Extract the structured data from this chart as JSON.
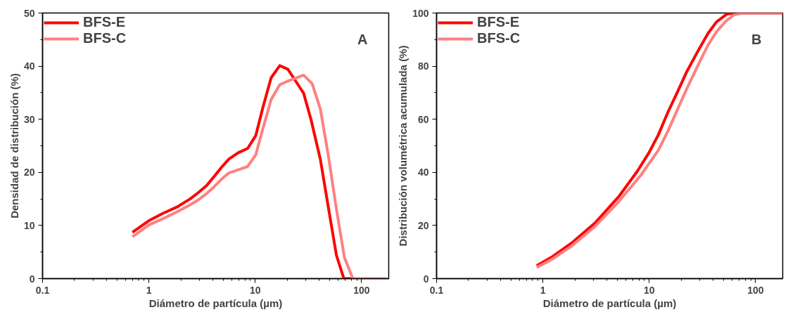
{
  "chart_data": [
    {
      "type": "line",
      "xlabel": "Diámetro de partícula (µm)",
      "ylabel": "Densidad de distribución (%)",
      "annotations": [
        "A"
      ],
      "log": "x",
      "xlim": [
        0.1,
        180
      ],
      "xticks": [
        0.1,
        1,
        10,
        100
      ],
      "ylim": [
        0,
        50
      ],
      "yticks": [
        0,
        10,
        20,
        30,
        40,
        50
      ],
      "grid": false,
      "legend": "top left",
      "marker": "none",
      "line_style": "solid",
      "series": [
        {
          "name": "BFS-E",
          "color": "#ff0000",
          "x": [
            0.7,
            1.0,
            1.36,
            1.85,
            2.44,
            2.88,
            3.48,
            4.06,
            4.84,
            5.65,
            6.92,
            8.48,
            10.1,
            11.8,
            14.1,
            17.0,
            20.3,
            23.8,
            28.5,
            33.5,
            41.0,
            49.0,
            58.0,
            68.2,
            79.5
          ],
          "values": [
            8.7,
            10.9,
            12.3,
            13.5,
            15.0,
            16.1,
            17.5,
            19.1,
            21.0,
            22.5,
            23.7,
            24.5,
            26.9,
            32.2,
            37.8,
            40.1,
            39.4,
            37.3,
            34.9,
            29.9,
            22.4,
            13.1,
            4.4,
            0,
            0
          ]
        },
        {
          "name": "BFS-C",
          "color": "#ff8080",
          "x": [
            0.7,
            1.0,
            1.36,
            1.85,
            2.44,
            2.9,
            3.48,
            4.06,
            4.75,
            5.65,
            6.92,
            8.48,
            10.1,
            11.8,
            14.1,
            17.0,
            20.3,
            23.8,
            28.5,
            34.3,
            41.0,
            49.0,
            58.0,
            68.9,
            82.8,
            171
          ],
          "values": [
            7.9,
            10.1,
            11.3,
            12.6,
            13.9,
            14.8,
            16.0,
            17.2,
            18.6,
            19.9,
            20.5,
            21.1,
            23.3,
            28.2,
            33.7,
            36.5,
            37.2,
            37.7,
            38.3,
            36.7,
            31.9,
            22.8,
            13.1,
            4.0,
            0,
            0
          ]
        }
      ]
    },
    {
      "type": "line",
      "xlabel": "Diámetro de partícula (µm)",
      "ylabel": "Distribución volumétrica acumulada (%)",
      "annotations": [
        "B"
      ],
      "log": "x",
      "xlim": [
        0.1,
        180
      ],
      "xticks": [
        0.1,
        1,
        10,
        100
      ],
      "ylim": [
        0,
        100
      ],
      "yticks": [
        0,
        20,
        40,
        60,
        80,
        100
      ],
      "grid": false,
      "legend": "top left",
      "marker": "none",
      "line_style": "solid",
      "series": [
        {
          "name": "BFS-E",
          "color": "#ff0000",
          "x": [
            0.875,
            1.23,
            1.85,
            3.08,
            5.13,
            7.72,
            10,
            12.2,
            15.0,
            18.4,
            22.6,
            29.2,
            35.8,
            42.8,
            53.7,
            62.5,
            180
          ],
          "values": [
            4.9,
            8.3,
            13.3,
            20.9,
            30.7,
            40.4,
            47.6,
            54.2,
            62.7,
            70.2,
            78.0,
            86.2,
            92.4,
            96.6,
            99.6,
            100,
            100
          ]
        },
        {
          "name": "BFS-C",
          "color": "#ff8080",
          "x": [
            0.875,
            1.23,
            1.85,
            3.08,
            5.13,
            8.4,
            12.2,
            15.0,
            18.4,
            22.6,
            29.2,
            35.8,
            42.8,
            52.4,
            62.5,
            76.5,
            180
          ],
          "values": [
            4.2,
            7.4,
            12.2,
            19.6,
            28.9,
            39.1,
            48.4,
            55.6,
            63.6,
            71.6,
            80.9,
            88.0,
            92.9,
            96.9,
            99.3,
            100,
            100
          ]
        }
      ]
    }
  ]
}
